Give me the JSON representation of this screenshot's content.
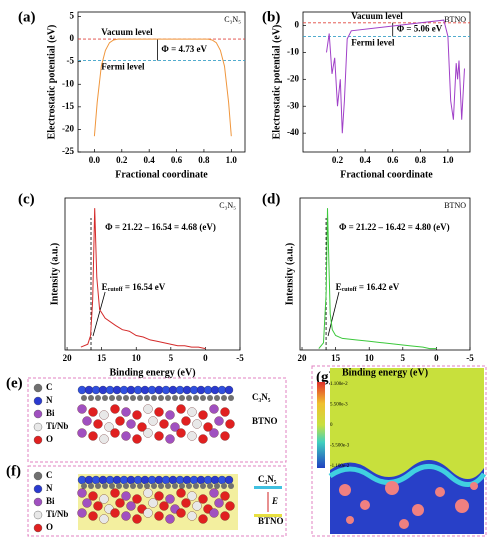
{
  "chart_data": [
    {
      "type": "line",
      "panel": "(a)",
      "sample": "C₃N₅",
      "xlabel": "Fractional coordinate",
      "ylabel": "Electrostatic potential (eV)",
      "xlim": [
        -0.12,
        1.1
      ],
      "ylim": [
        -25,
        6
      ],
      "xticks": [
        {
          "value": 0,
          "label": "0.0"
        },
        0.2,
        0.4,
        0.6,
        0.8,
        {
          "value": 1,
          "label": "1.0"
        }
      ],
      "yticks": [
        5,
        0,
        -5,
        -10,
        -15,
        -20,
        -25
      ],
      "color": "#f0963c",
      "x": [
        0,
        0.02,
        0.05,
        0.08,
        0.11,
        0.14,
        0.17,
        0.5,
        0.83,
        0.86,
        0.89,
        0.92,
        0.95,
        0.98,
        1.0
      ],
      "values": [
        -21.5,
        -14,
        -6,
        -2.5,
        -0.8,
        -0.2,
        0,
        0,
        0,
        -0.2,
        -0.8,
        -2.5,
        -6,
        -14,
        -21.5
      ],
      "reference_lines": [
        {
          "label": "Vacuum level",
          "value": 0,
          "color": "#e0443c"
        },
        {
          "label": "Fermi level",
          "value": -4.73,
          "color": "#3aa0c8"
        }
      ],
      "annotation": "Φ = 4.73 eV"
    },
    {
      "type": "line",
      "panel": "(b)",
      "sample": "BTNO",
      "xlabel": "Fractional coordinate",
      "ylabel": "Electrostatic potential (eV)",
      "xlim": [
        -0.05,
        1.16
      ],
      "ylim": [
        -47,
        5
      ],
      "xticks": [
        0.2,
        0.4,
        0.6,
        0.8,
        {
          "value": 1,
          "label": "1.0"
        }
      ],
      "yticks": [
        0,
        -10,
        -20,
        -30,
        -40
      ],
      "color": "#a040c8",
      "x": [
        0.12,
        0.14,
        0.16,
        0.18,
        0.2,
        0.22,
        0.235,
        0.25,
        0.27,
        0.3,
        0.97,
        1.0,
        1.02,
        1.04,
        1.06,
        1.07,
        1.08,
        1.1,
        1.12
      ],
      "values": [
        -10,
        -3,
        -18,
        -12,
        -30,
        -20,
        -40,
        -28,
        -5,
        -2,
        2,
        -4,
        -28,
        -35,
        -14,
        -20,
        -13,
        -35,
        -16
      ],
      "reference_lines": [
        {
          "label": "Vacuum level",
          "value": 1,
          "color": "#e0443c"
        },
        {
          "label": "Fermi level",
          "value": -4.06,
          "color": "#3aa0c8"
        }
      ],
      "annotation": "Φ = 5.06 eV"
    },
    {
      "type": "line",
      "panel": "(c)",
      "sample": "C₃N₅",
      "xlabel": "Binding energy (eV)",
      "ylabel": "Intensity (a.u.)",
      "xlim": [
        20.3,
        -5
      ],
      "ylim": [
        0,
        1.05
      ],
      "xticks": [
        20,
        15,
        10,
        5,
        0,
        -5
      ],
      "color": "#d42a2a",
      "x": [
        18,
        17,
        16.6,
        16.3,
        16,
        15.7,
        15.3,
        14.5,
        13,
        12,
        11,
        10,
        9,
        8,
        7,
        6,
        5,
        4,
        3,
        2,
        1,
        0
      ],
      "values": [
        0.02,
        0.04,
        0.1,
        0.35,
        0.98,
        0.5,
        0.28,
        0.22,
        0.17,
        0.14,
        0.13,
        0.1,
        0.09,
        0.07,
        0.06,
        0.05,
        0.04,
        0.03,
        0.03,
        0.02,
        0.02,
        0.01
      ],
      "cutoff": 16.54,
      "annotation": "Φ = 21.22 – 16.54 = 4.68 (eV)",
      "cutoff_label": {
        "main": "E",
        "sub": "cutoff",
        "rest": " = 16.54 eV"
      }
    },
    {
      "type": "line",
      "panel": "(d)",
      "sample": "BTNO",
      "xlabel": "Binding energy (eV)",
      "ylabel": "Intensity (a.u.)",
      "xlim": [
        20.3,
        -5
      ],
      "ylim": [
        0,
        1.05
      ],
      "xticks": [
        20,
        15,
        10,
        5,
        0,
        -5
      ],
      "color": "#3cc83c",
      "x": [
        17.5,
        16.8,
        16.4,
        16.2,
        16,
        15.8,
        15.5,
        15,
        14,
        12,
        10,
        8,
        6,
        4,
        2,
        1,
        0
      ],
      "values": [
        0.01,
        0.05,
        0.4,
        0.98,
        0.6,
        0.25,
        0.14,
        0.1,
        0.08,
        0.07,
        0.06,
        0.05,
        0.04,
        0.03,
        0.02,
        0.01,
        0.01
      ],
      "cutoff": 16.42,
      "annotation": "Φ = 21.22 – 16.42 = 4.80 (eV)",
      "cutoff_label": {
        "main": "E",
        "sub": "cutoff",
        "rest": " = 16.42 eV"
      }
    }
  ],
  "structures": {
    "e": {
      "panel": "(e)",
      "legend": [
        "C",
        "N",
        "Bi",
        "Ti/Nb",
        "O"
      ],
      "top": "C₃N₅",
      "bottom": "BTNO"
    },
    "f": {
      "panel": "(f)",
      "legend": [
        "C",
        "N",
        "Bi",
        "Ti/Nb",
        "O"
      ],
      "top": "C₃N₅",
      "bottom": "BTNO",
      "field": "E"
    },
    "g": {
      "panel": "(g)",
      "colorbar_labels": [
        "1.100e-2",
        "5.500e-3",
        "0",
        "-5.500e-3",
        "-1.100e-2"
      ]
    }
  }
}
